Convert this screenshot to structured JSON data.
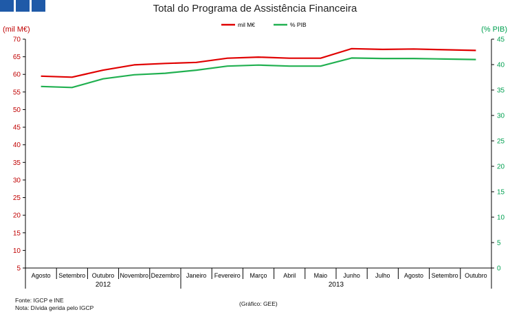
{
  "title": "Total do Programa de Assistência Financeira",
  "logo": {
    "icon": "organization-logo",
    "color": "#1f5aa8"
  },
  "footer": {
    "source": "Fonte: IGCP e INE",
    "note": "Nota: Dívida gerida pelo IGCP",
    "credit": "(Gráfico: GEE)"
  },
  "chart_data": {
    "type": "line",
    "title": "Total do Programa de Assistência Financeira",
    "categories": [
      "Agosto",
      "Setembro",
      "Outubro",
      "Novembro",
      "Dezembro",
      "Janeiro",
      "Fevereiro",
      "Março",
      "Abril",
      "Maio",
      "Junho",
      "Julho",
      "Agosto",
      "Setembro",
      "Outubro"
    ],
    "year_groups": [
      {
        "label": "2012",
        "start": 0,
        "end": 4
      },
      {
        "label": "2013",
        "start": 5,
        "end": 14
      }
    ],
    "left_axis": {
      "label": "(mil M€)",
      "ylim": [
        5,
        70
      ],
      "ticks": [
        5,
        10,
        15,
        20,
        25,
        30,
        35,
        40,
        45,
        50,
        55,
        60,
        65,
        70
      ],
      "color": "#c00000"
    },
    "right_axis": {
      "label": "(% PIB)",
      "ylim": [
        0,
        45
      ],
      "ticks": [
        0,
        5,
        10,
        15,
        20,
        25,
        30,
        35,
        40,
        45
      ],
      "color": "#00a050"
    },
    "series": [
      {
        "name": "mil M€",
        "axis": "left",
        "color": "#e00000",
        "values": [
          59.5,
          59.2,
          61.2,
          62.7,
          63.1,
          63.4,
          64.6,
          64.9,
          64.6,
          64.6,
          67.3,
          67.1,
          67.2,
          67.0,
          66.8
        ]
      },
      {
        "name": "% PIB",
        "axis": "right",
        "color": "#20b050",
        "values": [
          35.7,
          35.5,
          37.2,
          38.0,
          38.3,
          38.9,
          39.7,
          39.9,
          39.7,
          39.7,
          41.3,
          41.2,
          41.2,
          41.1,
          41.0
        ]
      }
    ],
    "legend": "top-center",
    "grid": false
  }
}
